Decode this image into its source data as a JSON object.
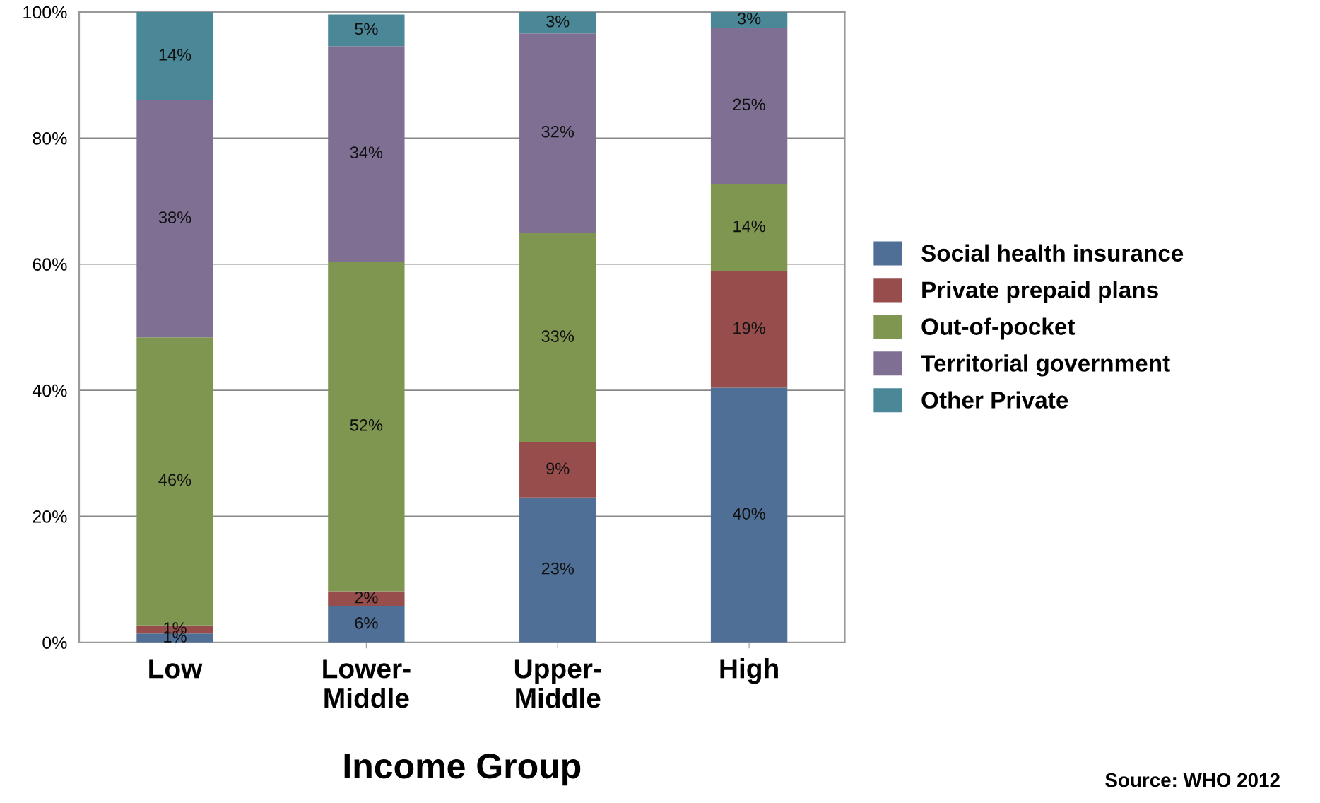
{
  "chart_data": {
    "type": "bar",
    "stacked": true,
    "xlabel": "Income Group",
    "categories": [
      "Low",
      "Lower-\nMiddle",
      "Upper-\nMiddle",
      "High"
    ],
    "series": [
      {
        "name": "Social health insurance",
        "color": "#4f6f96",
        "values": [
          1.4,
          5.7,
          23.0,
          40.4
        ],
        "value_labels": [
          "1%",
          "6%",
          "23%",
          "40%"
        ]
      },
      {
        "name": "Private prepaid plans",
        "color": "#964d4b",
        "values": [
          1.3,
          2.4,
          8.7,
          18.5
        ],
        "value_labels": [
          "1%",
          "2%",
          "9%",
          "19%"
        ]
      },
      {
        "name": "Out-of-pocket",
        "color": "#7f9651",
        "values": [
          45.7,
          52.3,
          33.3,
          13.8
        ],
        "value_labels": [
          "46%",
          "52%",
          "33%",
          "14%"
        ]
      },
      {
        "name": "Territorial government",
        "color": "#7f6f93",
        "values": [
          37.6,
          34.2,
          31.6,
          24.8
        ],
        "value_labels": [
          "38%",
          "34%",
          "32%",
          "25%"
        ]
      },
      {
        "name": "Other Private",
        "color": "#4a8797",
        "values": [
          14.0,
          5.0,
          3.4,
          2.5
        ],
        "value_labels": [
          "14%",
          "5%",
          "3%",
          "3%"
        ]
      }
    ],
    "ylim": [
      0,
      100
    ],
    "yticks": [
      {
        "value": 0,
        "label": "0%"
      },
      {
        "value": 20,
        "label": "20%"
      },
      {
        "value": 40,
        "label": "40%"
      },
      {
        "value": 60,
        "label": "60%"
      },
      {
        "value": 80,
        "label": "80%"
      },
      {
        "value": 100,
        "label": "100%"
      }
    ],
    "grid": "y",
    "legend": "right",
    "annotations": [
      "Source: WHO 2012"
    ]
  }
}
